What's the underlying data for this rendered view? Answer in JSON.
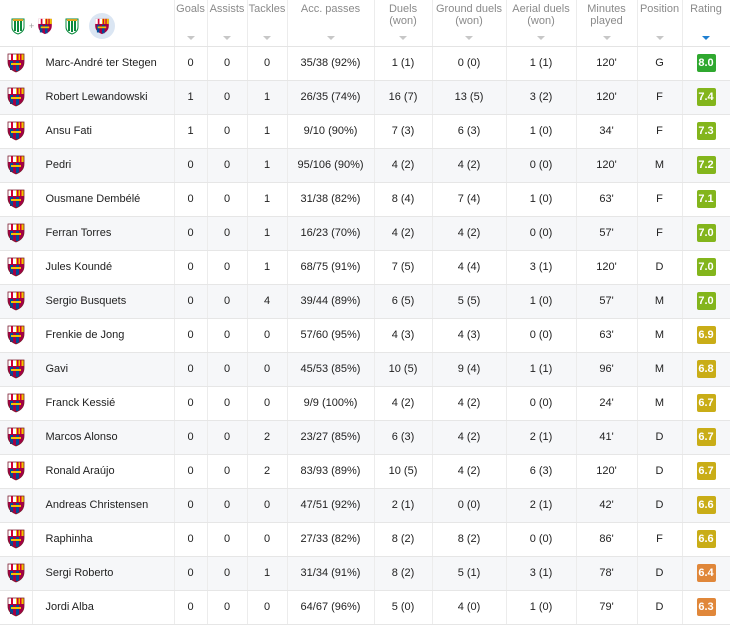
{
  "colors": {
    "accent": "#1e7fd1",
    "rating_green_dark": "#2fa82f",
    "rating_green": "#83b51c",
    "rating_yellow": "#c9ad17",
    "rating_orange": "#e0873a"
  },
  "filters": [
    {
      "name": "filter-both-teams",
      "icons": [
        "betis-crest-icon",
        "barcelona-crest-icon"
      ]
    },
    {
      "name": "filter-betis",
      "icons": [
        "betis-crest-icon"
      ]
    },
    {
      "name": "filter-barcelona",
      "icons": [
        "barcelona-crest-icon"
      ],
      "selected": true
    }
  ],
  "columns": {
    "goals": "Goals",
    "assists": "Assists",
    "tackles": "Tackles",
    "acc_passes": "Acc. passes",
    "duels_1": "Duels",
    "duels_2": "(won)",
    "ground_1": "Ground duels",
    "ground_2": "(won)",
    "aerial_1": "Aerial duels",
    "aerial_2": "(won)",
    "minutes_1": "Minutes",
    "minutes_2": "played",
    "position": "Position",
    "rating": "Rating"
  },
  "players": [
    {
      "name": "Marc-André ter Stegen",
      "goals": "0",
      "assists": "0",
      "tackles": "0",
      "passes": "35/38 (92%)",
      "duels": "1 (1)",
      "ground": "0 (0)",
      "aerial": "1 (1)",
      "minutes": "120'",
      "position": "G",
      "rating": "8.0",
      "rating_color": "#2fa82f"
    },
    {
      "name": "Robert Lewandowski",
      "goals": "1",
      "assists": "0",
      "tackles": "1",
      "passes": "26/35 (74%)",
      "duels": "16 (7)",
      "ground": "13 (5)",
      "aerial": "3 (2)",
      "minutes": "120'",
      "position": "F",
      "rating": "7.4",
      "rating_color": "#83b51c"
    },
    {
      "name": "Ansu Fati",
      "goals": "1",
      "assists": "0",
      "tackles": "1",
      "passes": "9/10 (90%)",
      "duels": "7 (3)",
      "ground": "6 (3)",
      "aerial": "1 (0)",
      "minutes": "34'",
      "position": "F",
      "rating": "7.3",
      "rating_color": "#83b51c"
    },
    {
      "name": "Pedri",
      "goals": "0",
      "assists": "0",
      "tackles": "1",
      "passes": "95/106 (90%)",
      "duels": "4 (2)",
      "ground": "4 (2)",
      "aerial": "0 (0)",
      "minutes": "120'",
      "position": "M",
      "rating": "7.2",
      "rating_color": "#83b51c"
    },
    {
      "name": "Ousmane Dembélé",
      "goals": "0",
      "assists": "0",
      "tackles": "1",
      "passes": "31/38 (82%)",
      "duels": "8 (4)",
      "ground": "7 (4)",
      "aerial": "1 (0)",
      "minutes": "63'",
      "position": "F",
      "rating": "7.1",
      "rating_color": "#83b51c"
    },
    {
      "name": "Ferran Torres",
      "goals": "0",
      "assists": "0",
      "tackles": "1",
      "passes": "16/23 (70%)",
      "duels": "4 (2)",
      "ground": "4 (2)",
      "aerial": "0 (0)",
      "minutes": "57'",
      "position": "F",
      "rating": "7.0",
      "rating_color": "#83b51c"
    },
    {
      "name": "Jules Koundé",
      "goals": "0",
      "assists": "0",
      "tackles": "1",
      "passes": "68/75 (91%)",
      "duels": "7 (5)",
      "ground": "4 (4)",
      "aerial": "3 (1)",
      "minutes": "120'",
      "position": "D",
      "rating": "7.0",
      "rating_color": "#83b51c"
    },
    {
      "name": "Sergio Busquets",
      "goals": "0",
      "assists": "0",
      "tackles": "4",
      "passes": "39/44 (89%)",
      "duels": "6 (5)",
      "ground": "5 (5)",
      "aerial": "1 (0)",
      "minutes": "57'",
      "position": "M",
      "rating": "7.0",
      "rating_color": "#83b51c"
    },
    {
      "name": "Frenkie de Jong",
      "goals": "0",
      "assists": "0",
      "tackles": "0",
      "passes": "57/60 (95%)",
      "duels": "4 (3)",
      "ground": "4 (3)",
      "aerial": "0 (0)",
      "minutes": "63'",
      "position": "M",
      "rating": "6.9",
      "rating_color": "#c9ad17"
    },
    {
      "name": "Gavi",
      "goals": "0",
      "assists": "0",
      "tackles": "0",
      "passes": "45/53 (85%)",
      "duels": "10 (5)",
      "ground": "9 (4)",
      "aerial": "1 (1)",
      "minutes": "96'",
      "position": "M",
      "rating": "6.8",
      "rating_color": "#c9ad17"
    },
    {
      "name": "Franck Kessié",
      "goals": "0",
      "assists": "0",
      "tackles": "0",
      "passes": "9/9 (100%)",
      "duels": "4 (2)",
      "ground": "4 (2)",
      "aerial": "0 (0)",
      "minutes": "24'",
      "position": "M",
      "rating": "6.7",
      "rating_color": "#c9ad17"
    },
    {
      "name": "Marcos Alonso",
      "goals": "0",
      "assists": "0",
      "tackles": "2",
      "passes": "23/27 (85%)",
      "duels": "6 (3)",
      "ground": "4 (2)",
      "aerial": "2 (1)",
      "minutes": "41'",
      "position": "D",
      "rating": "6.7",
      "rating_color": "#c9ad17"
    },
    {
      "name": "Ronald Araújo",
      "goals": "0",
      "assists": "0",
      "tackles": "2",
      "passes": "83/93 (89%)",
      "duels": "10 (5)",
      "ground": "4 (2)",
      "aerial": "6 (3)",
      "minutes": "120'",
      "position": "D",
      "rating": "6.7",
      "rating_color": "#c9ad17"
    },
    {
      "name": "Andreas Christensen",
      "goals": "0",
      "assists": "0",
      "tackles": "0",
      "passes": "47/51 (92%)",
      "duels": "2 (1)",
      "ground": "0 (0)",
      "aerial": "2 (1)",
      "minutes": "42'",
      "position": "D",
      "rating": "6.6",
      "rating_color": "#c9ad17"
    },
    {
      "name": "Raphinha",
      "goals": "0",
      "assists": "0",
      "tackles": "0",
      "passes": "27/33 (82%)",
      "duels": "8 (2)",
      "ground": "8 (2)",
      "aerial": "0 (0)",
      "minutes": "86'",
      "position": "F",
      "rating": "6.6",
      "rating_color": "#c9ad17"
    },
    {
      "name": "Sergi Roberto",
      "goals": "0",
      "assists": "0",
      "tackles": "1",
      "passes": "31/34 (91%)",
      "duels": "8 (2)",
      "ground": "5 (1)",
      "aerial": "3 (1)",
      "minutes": "78'",
      "position": "D",
      "rating": "6.4",
      "rating_color": "#e0873a"
    },
    {
      "name": "Jordi Alba",
      "goals": "0",
      "assists": "0",
      "tackles": "0",
      "passes": "64/67 (96%)",
      "duels": "5 (0)",
      "ground": "4 (0)",
      "aerial": "1 (0)",
      "minutes": "79'",
      "position": "D",
      "rating": "6.3",
      "rating_color": "#e0873a"
    }
  ]
}
